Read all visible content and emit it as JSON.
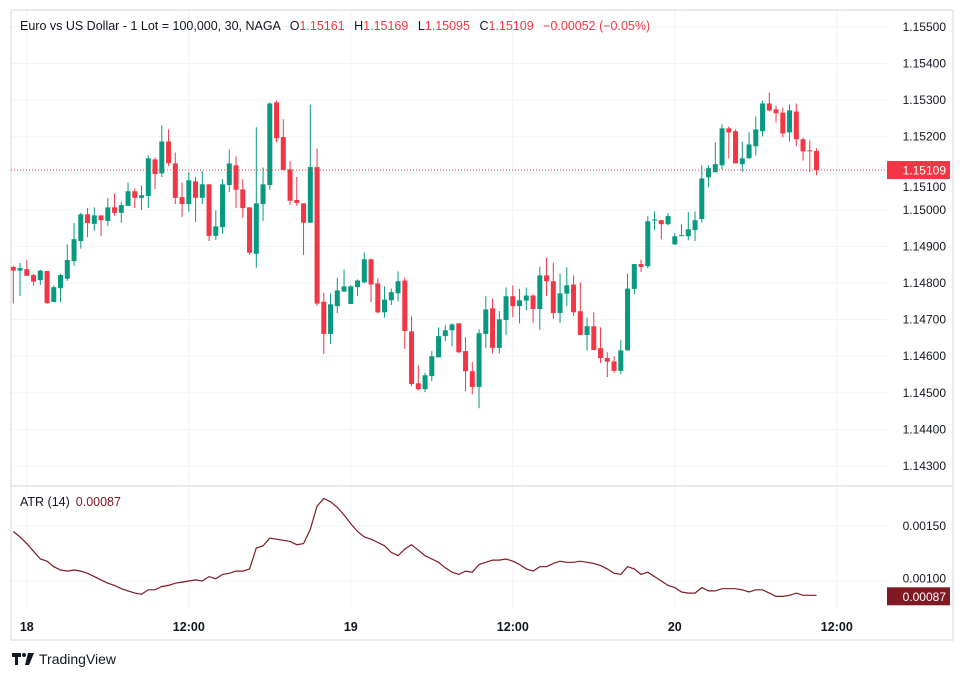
{
  "legend": {
    "title": "Euro vs US Dollar - 1 Lot = 100,000, 30, NAGA",
    "o_label": "O",
    "o_value": "1.15161",
    "h_label": "H",
    "h_value": "1.15169",
    "l_label": "L",
    "l_value": "1.15095",
    "c_label": "C",
    "c_value": "1.15109",
    "change": "−0.00052 (−0.05%)"
  },
  "atr_legend": {
    "label": "ATR (14)",
    "value": "0.00087"
  },
  "brand": "TradingView",
  "colors": {
    "up": "#089981",
    "down": "#f23645",
    "atr": "#801922",
    "grid": "#f0f3fa",
    "border": "#e0e3eb"
  },
  "chart_data": [
    {
      "type": "candlestick",
      "title": "Euro vs US Dollar - 1 Lot = 100,000, 30, NAGA",
      "interval": "30",
      "ylim": [
        1.1425,
        1.1558
      ],
      "y_ticks": [
        "1.15500",
        "1.15400",
        "1.15300",
        "1.15200",
        "1.15100",
        "1.15000",
        "1.14900",
        "1.14800",
        "1.14700",
        "1.14600",
        "1.14500",
        "1.14400",
        "1.14300"
      ],
      "last_price": "1.15109",
      "x_ticks": [
        {
          "label": "18",
          "index": 2
        },
        {
          "label": "12:00",
          "index": 26
        },
        {
          "label": "19",
          "index": 50
        },
        {
          "label": "12:00",
          "index": 74
        },
        {
          "label": "20",
          "index": 98
        },
        {
          "label": "12:00",
          "index": 122
        }
      ],
      "ohlc": [
        [
          1.14844,
          1.14847,
          1.14744,
          1.14834
        ],
        [
          1.14834,
          1.14855,
          1.14765,
          1.14841
        ],
        [
          1.14838,
          1.14864,
          1.1482,
          1.1482
        ],
        [
          1.14822,
          1.14825,
          1.14793,
          1.14804
        ],
        [
          1.14808,
          1.14836,
          1.14795,
          1.14834
        ],
        [
          1.14833,
          1.14833,
          1.14743,
          1.14745
        ],
        [
          1.14748,
          1.14793,
          1.14748,
          1.14789
        ],
        [
          1.14786,
          1.14825,
          1.14748,
          1.14822
        ],
        [
          1.14812,
          1.14906,
          1.14806,
          1.14863
        ],
        [
          1.1486,
          1.14964,
          1.14847,
          1.1492
        ],
        [
          1.14915,
          1.14992,
          1.14894,
          1.14988
        ],
        [
          1.14988,
          1.15005,
          1.14925,
          1.14964
        ],
        [
          1.14962,
          1.15007,
          1.14943,
          1.14985
        ],
        [
          1.14985,
          1.14985,
          1.14929,
          1.14972
        ],
        [
          1.1497,
          1.15032,
          1.14956,
          1.15007
        ],
        [
          1.15007,
          1.15045,
          1.14984,
          1.14992
        ],
        [
          1.14992,
          1.15022,
          1.14965,
          1.15013
        ],
        [
          1.15011,
          1.15075,
          1.15011,
          1.15051
        ],
        [
          1.15051,
          1.15059,
          1.15005,
          1.15033
        ],
        [
          1.15033,
          1.15067,
          1.15,
          1.1504
        ],
        [
          1.15038,
          1.15149,
          1.15005,
          1.15141
        ],
        [
          1.15138,
          1.15144,
          1.15057,
          1.15098
        ],
        [
          1.151,
          1.15231,
          1.1509,
          1.15187
        ],
        [
          1.15187,
          1.1522,
          1.1512,
          1.15128
        ],
        [
          1.15127,
          1.15157,
          1.15016,
          1.15033
        ],
        [
          1.15035,
          1.15075,
          1.14981,
          1.15016
        ],
        [
          1.15016,
          1.15104,
          1.14995,
          1.15081
        ],
        [
          1.15078,
          1.1509,
          1.14967,
          1.15033
        ],
        [
          1.15033,
          1.15106,
          1.15016,
          1.1507
        ],
        [
          1.1507,
          1.1507,
          1.14915,
          1.14929
        ],
        [
          1.14929,
          1.14999,
          1.14918,
          1.14955
        ],
        [
          1.14953,
          1.15084,
          1.14935,
          1.1507
        ],
        [
          1.15068,
          1.15165,
          1.15049,
          1.15127
        ],
        [
          1.15122,
          1.15146,
          1.15005,
          1.15055
        ],
        [
          1.15056,
          1.15084,
          1.14978,
          1.15005
        ],
        [
          1.15007,
          1.15007,
          1.14877,
          1.14883
        ],
        [
          1.1488,
          1.15226,
          1.14842,
          1.15018
        ],
        [
          1.15016,
          1.15116,
          1.1497,
          1.1507
        ],
        [
          1.15068,
          1.15294,
          1.15055,
          1.15291
        ],
        [
          1.15294,
          1.15299,
          1.15185,
          1.15196
        ],
        [
          1.15199,
          1.15248,
          1.15109,
          1.15109
        ],
        [
          1.15111,
          1.15134,
          1.15014,
          1.15025
        ],
        [
          1.15027,
          1.1509,
          1.15011,
          1.15019
        ],
        [
          1.15018,
          1.15018,
          1.14877,
          1.14965
        ],
        [
          1.14965,
          1.15288,
          1.14965,
          1.15117
        ],
        [
          1.15117,
          1.15168,
          1.14738,
          1.14744
        ],
        [
          1.14749,
          1.14773,
          1.14606,
          1.14661
        ],
        [
          1.14661,
          1.14772,
          1.14634,
          1.14742
        ],
        [
          1.14737,
          1.14815,
          1.14718,
          1.1478
        ],
        [
          1.14777,
          1.14837,
          1.14775,
          1.14791
        ],
        [
          1.14743,
          1.14794,
          1.14743,
          1.14791
        ],
        [
          1.14789,
          1.1481,
          1.14765,
          1.14807
        ],
        [
          1.14802,
          1.14884,
          1.14799,
          1.14865
        ],
        [
          1.14865,
          1.14867,
          1.14748,
          1.14796
        ],
        [
          1.14799,
          1.14813,
          1.14717,
          1.1472
        ],
        [
          1.1472,
          1.14791,
          1.14706,
          1.14755
        ],
        [
          1.14753,
          1.14785,
          1.1474,
          1.14775
        ],
        [
          1.14772,
          1.14832,
          1.1475,
          1.14805
        ],
        [
          1.14807,
          1.14815,
          1.1462,
          1.14669
        ],
        [
          1.14668,
          1.14709,
          1.14518,
          1.14524
        ],
        [
          1.14526,
          1.14575,
          1.14507,
          1.1451
        ],
        [
          1.1451,
          1.14554,
          1.14502,
          1.14548
        ],
        [
          1.14546,
          1.14614,
          1.14532,
          1.146
        ],
        [
          1.14597,
          1.14679,
          1.14597,
          1.14655
        ],
        [
          1.14655,
          1.14685,
          1.14641,
          1.14671
        ],
        [
          1.14671,
          1.1469,
          1.14627,
          1.14687
        ],
        [
          1.1469,
          1.1469,
          1.14608,
          1.14611
        ],
        [
          1.14614,
          1.14652,
          1.14505,
          1.14559
        ],
        [
          1.14559,
          1.14584,
          1.14496,
          1.14516
        ],
        [
          1.14516,
          1.14674,
          1.14458,
          1.14663
        ],
        [
          1.14661,
          1.14764,
          1.14622,
          1.14728
        ],
        [
          1.14731,
          1.14758,
          1.14608,
          1.14623
        ],
        [
          1.14623,
          1.14723,
          1.14608,
          1.14701
        ],
        [
          1.14699,
          1.14788,
          1.14658,
          1.14764
        ],
        [
          1.14764,
          1.14794,
          1.14707,
          1.14737
        ],
        [
          1.14737,
          1.14784,
          1.1469,
          1.14753
        ],
        [
          1.14752,
          1.14788,
          1.14726,
          1.14766
        ],
        [
          1.14766,
          1.14769,
          1.14691,
          1.14729
        ],
        [
          1.14729,
          1.14845,
          1.14672,
          1.14821
        ],
        [
          1.14821,
          1.1487,
          1.14765,
          1.14805
        ],
        [
          1.14805,
          1.14856,
          1.14702,
          1.14718
        ],
        [
          1.14718,
          1.14826,
          1.14691,
          1.14772
        ],
        [
          1.14771,
          1.14843,
          1.14737,
          1.14794
        ],
        [
          1.14796,
          1.14821,
          1.1471,
          1.1472
        ],
        [
          1.14723,
          1.14802,
          1.14658,
          1.14658
        ],
        [
          1.14658,
          1.14706,
          1.14615,
          1.14682
        ],
        [
          1.14682,
          1.1472,
          1.14617,
          1.14617
        ],
        [
          1.14622,
          1.14679,
          1.14582,
          1.14595
        ],
        [
          1.14595,
          1.14611,
          1.14543,
          1.14585
        ],
        [
          1.14586,
          1.146,
          1.14555,
          1.1456
        ],
        [
          1.1456,
          1.14644,
          1.14551,
          1.14616
        ],
        [
          1.14616,
          1.14826,
          1.14616,
          1.14785
        ],
        [
          1.14784,
          1.14852,
          1.1477,
          1.14852
        ],
        [
          1.14852,
          1.14864,
          1.1483,
          1.14844
        ],
        [
          1.14846,
          1.14983,
          1.14841,
          1.14969
        ],
        [
          1.14971,
          1.14996,
          1.14945,
          1.14974
        ],
        [
          1.14972,
          1.14972,
          1.1492,
          1.14961
        ],
        [
          1.14961,
          1.14991,
          1.14958,
          1.14983
        ],
        [
          1.14906,
          1.14936,
          1.14904,
          1.14928
        ],
        [
          1.14929,
          1.14961,
          1.14929,
          1.14931
        ],
        [
          1.14928,
          1.14994,
          1.14917,
          1.14947
        ],
        [
          1.14945,
          1.14996,
          1.14915,
          1.14972
        ],
        [
          1.14975,
          1.15122,
          1.14966,
          1.15086
        ],
        [
          1.15089,
          1.15122,
          1.15062,
          1.15114
        ],
        [
          1.15103,
          1.15185,
          1.15103,
          1.15125
        ],
        [
          1.15122,
          1.15234,
          1.15111,
          1.15223
        ],
        [
          1.15223,
          1.15228,
          1.15141,
          1.15212
        ],
        [
          1.15215,
          1.1522,
          1.15127,
          1.15127
        ],
        [
          1.15125,
          1.15187,
          1.15105,
          1.15141
        ],
        [
          1.15141,
          1.15212,
          1.15141,
          1.15179
        ],
        [
          1.15174,
          1.15255,
          1.15149,
          1.1522
        ],
        [
          1.15215,
          1.15299,
          1.15201,
          1.15291
        ],
        [
          1.15291,
          1.15321,
          1.15269,
          1.15272
        ],
        [
          1.15275,
          1.15285,
          1.15239,
          1.15264
        ],
        [
          1.15266,
          1.1528,
          1.15198,
          1.15209
        ],
        [
          1.15212,
          1.15288,
          1.15187,
          1.15272
        ],
        [
          1.15269,
          1.15291,
          1.15174,
          1.15193
        ],
        [
          1.15193,
          1.15198,
          1.15135,
          1.1516
        ],
        [
          1.15163,
          1.1519,
          1.15103,
          1.15161
        ],
        [
          1.15161,
          1.15169,
          1.15095,
          1.15109
        ]
      ]
    },
    {
      "type": "line",
      "series": [
        {
          "name": "ATR (14)",
          "values": [
            0.00145,
            0.0014,
            0.00134,
            0.00127,
            0.0012,
            0.00118,
            0.00113,
            0.0011,
            0.00109,
            0.0011,
            0.00109,
            0.00107,
            0.00104,
            0.00101,
            0.00098,
            0.00096,
            0.00093,
            0.00091,
            0.00089,
            0.00088,
            0.00092,
            0.00092,
            0.00095,
            0.00096,
            0.00098,
            0.00099,
            0.001,
            0.00101,
            0.001,
            0.00104,
            0.00102,
            0.00106,
            0.00107,
            0.00109,
            0.00109,
            0.00111,
            0.0013,
            0.00132,
            0.00139,
            0.00138,
            0.00137,
            0.00136,
            0.00133,
            0.00134,
            0.00147,
            0.00168,
            0.00175,
            0.00172,
            0.00167,
            0.0016,
            0.00152,
            0.00145,
            0.0014,
            0.00138,
            0.00135,
            0.00132,
            0.00126,
            0.00123,
            0.00129,
            0.00133,
            0.00128,
            0.00123,
            0.0012,
            0.00117,
            0.00112,
            0.00108,
            0.00106,
            0.00109,
            0.00108,
            0.00115,
            0.00117,
            0.00119,
            0.00119,
            0.0012,
            0.00118,
            0.00115,
            0.00111,
            0.00109,
            0.00113,
            0.00113,
            0.00116,
            0.00118,
            0.00117,
            0.00117,
            0.00118,
            0.00117,
            0.00116,
            0.00114,
            0.00111,
            0.00107,
            0.00106,
            0.00113,
            0.00111,
            0.00106,
            0.00108,
            0.00104,
            0.001,
            0.00096,
            0.00094,
            0.0009,
            0.00089,
            0.00089,
            0.00094,
            0.00091,
            0.00091,
            0.00093,
            0.00093,
            0.00093,
            0.00092,
            0.0009,
            0.00092,
            0.00092,
            0.00089,
            0.00086,
            0.00086,
            0.00087,
            0.00089,
            0.00087,
            0.00087,
            0.00087
          ]
        }
      ],
      "y_ticks": [
        "0.00150",
        "0.00100"
      ],
      "last_value": "0.00087"
    }
  ]
}
